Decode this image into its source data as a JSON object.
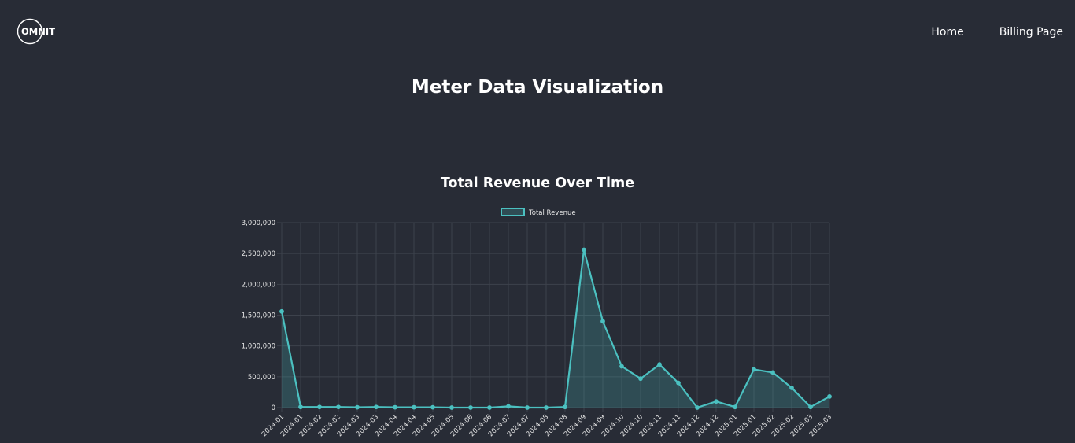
{
  "brand": {
    "logo_text": "OMNIT"
  },
  "nav": {
    "home": "Home",
    "billing": "Billing Page"
  },
  "page": {
    "title": "Meter Data Visualization"
  },
  "colors": {
    "background": "#282c36",
    "line": "#4bc0c0",
    "grid": "#3d424c"
  },
  "chart_data": {
    "type": "line",
    "title": "Total Revenue Over Time",
    "xlabel": "",
    "ylabel": "",
    "ylim": [
      0,
      3000000
    ],
    "yticks": [
      0,
      500000,
      1000000,
      1500000,
      2000000,
      2500000,
      3000000
    ],
    "ytick_labels": [
      "0",
      "500,000",
      "1,000,000",
      "1,500,000",
      "2,000,000",
      "2,500,000",
      "3,000,000"
    ],
    "grid": true,
    "legend": "top-center",
    "categories": [
      "2024-01",
      "2024-01",
      "2024-02",
      "2024-02",
      "2024-03",
      "2024-03",
      "2024-04",
      "2024-04",
      "2024-05",
      "2024-05",
      "2024-06",
      "2024-06",
      "2024-07",
      "2024-07",
      "2024-08",
      "2024-08",
      "2024-09",
      "2024-09",
      "2024-10",
      "2024-10",
      "2024-11",
      "2024-11",
      "2024-12",
      "2024-12",
      "2025-01",
      "2025-01",
      "2025-02",
      "2025-02",
      "2025-03",
      "2025-03"
    ],
    "series": [
      {
        "name": "Total Revenue",
        "color": "#4bc0c0",
        "values": [
          1560000,
          10000,
          10000,
          10000,
          5000,
          10000,
          5000,
          5000,
          5000,
          0,
          0,
          0,
          20000,
          0,
          0,
          10000,
          2560000,
          1400000,
          670000,
          470000,
          700000,
          400000,
          0,
          100000,
          10000,
          620000,
          570000,
          320000,
          10000,
          180000
        ]
      }
    ]
  }
}
